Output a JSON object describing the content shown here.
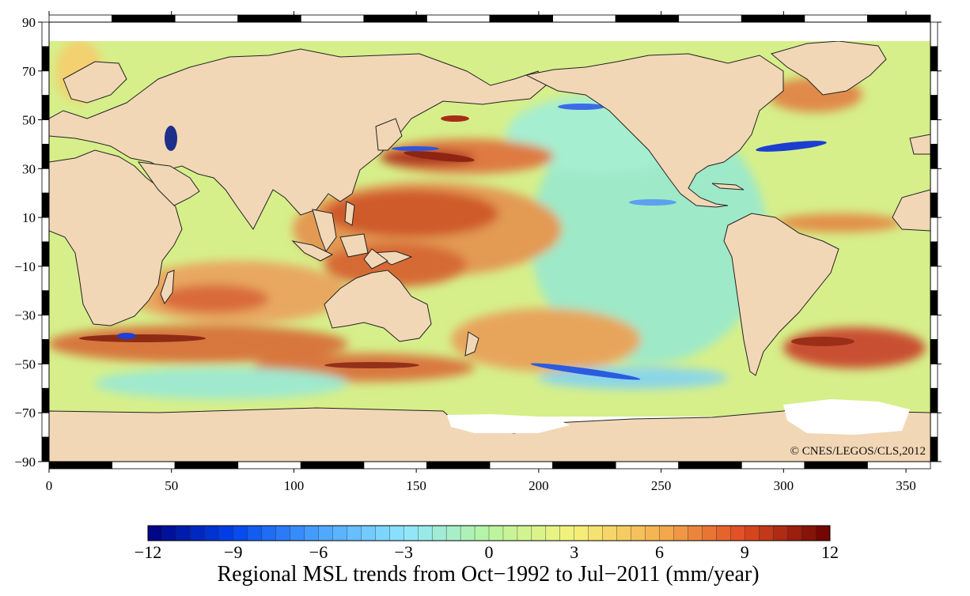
{
  "map": {
    "credit": "© CNES/LEGOS/CLS,2012",
    "y_ticks": [
      "90",
      "70",
      "50",
      "30",
      "10",
      "−10",
      "−30",
      "−50",
      "−70",
      "−90"
    ],
    "x_ticks": [
      "0",
      "50",
      "100",
      "150",
      "200",
      "250",
      "300",
      "350"
    ],
    "lon_range": [
      0,
      360
    ],
    "lat_range": [
      -90,
      90
    ],
    "land_color": "#f2d7b6",
    "no_data_color": "#ffffff"
  },
  "colorbar": {
    "ticks": [
      "−12",
      "−9",
      "−6",
      "−3",
      "0",
      "3",
      "6",
      "9",
      "12"
    ],
    "range": [
      -12,
      12
    ],
    "colors": [
      "#00007f",
      "#0044ee",
      "#4aa3ff",
      "#8ee6ff",
      "#b8f5a0",
      "#f6f27a",
      "#f5b050",
      "#e04a20",
      "#6b0000"
    ],
    "caption": "Regional MSL trends from Oct−1992 to Jul−2011 (mm/year)"
  }
}
